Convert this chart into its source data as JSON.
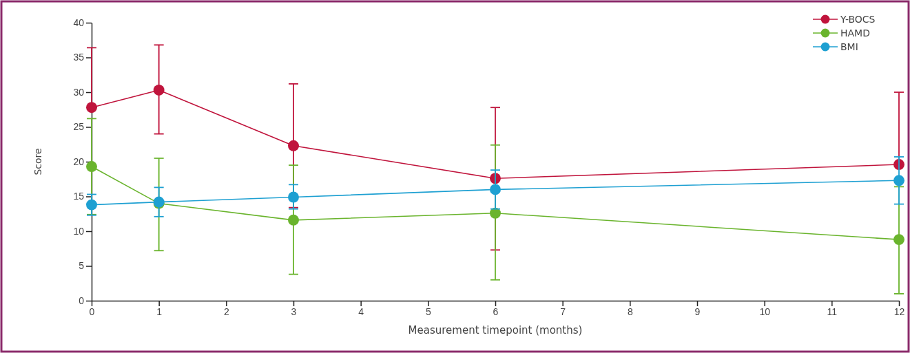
{
  "chart_data": {
    "type": "line",
    "xlabel": "Measurement timepoint (months)",
    "ylabel": "Score",
    "x": [
      0,
      1,
      3,
      6,
      12
    ],
    "series": [
      {
        "name": "Y-BOCS",
        "color": "#c0143c",
        "values": [
          27.8,
          30.3,
          22.3,
          17.6,
          19.6
        ],
        "errors": [
          [
            27.8,
            36.4
          ],
          [
            24.0,
            36.8
          ],
          [
            13.4,
            31.2
          ],
          [
            7.3,
            27.8
          ],
          [
            19.6,
            30.0
          ]
        ]
      },
      {
        "name": "HAMD",
        "color": "#6ab42d",
        "values": [
          19.3,
          14.0,
          11.6,
          12.6,
          8.8
        ],
        "errors": [
          [
            12.4,
            26.2
          ],
          [
            7.2,
            20.5
          ],
          [
            3.8,
            19.5
          ],
          [
            3.0,
            22.4
          ],
          [
            1.0,
            16.4
          ]
        ]
      },
      {
        "name": "BMI",
        "color": "#1ea0d2",
        "values": [
          13.8,
          14.2,
          14.9,
          16.0,
          17.3
        ],
        "errors": [
          [
            12.3,
            15.3
          ],
          [
            12.1,
            16.3
          ],
          [
            13.2,
            16.7
          ],
          [
            13.2,
            18.8
          ],
          [
            13.9,
            20.7
          ]
        ]
      }
    ],
    "xlim": [
      0,
      12
    ],
    "xticks": [
      0,
      1,
      2,
      3,
      4,
      5,
      6,
      7,
      8,
      9,
      10,
      11,
      12
    ],
    "ylim": [
      0,
      40
    ],
    "yticks": [
      0,
      5,
      10,
      15,
      20,
      25,
      30,
      35,
      40
    ],
    "grid": false,
    "legend": "top right",
    "marker": "circle",
    "line_style": "solid"
  }
}
